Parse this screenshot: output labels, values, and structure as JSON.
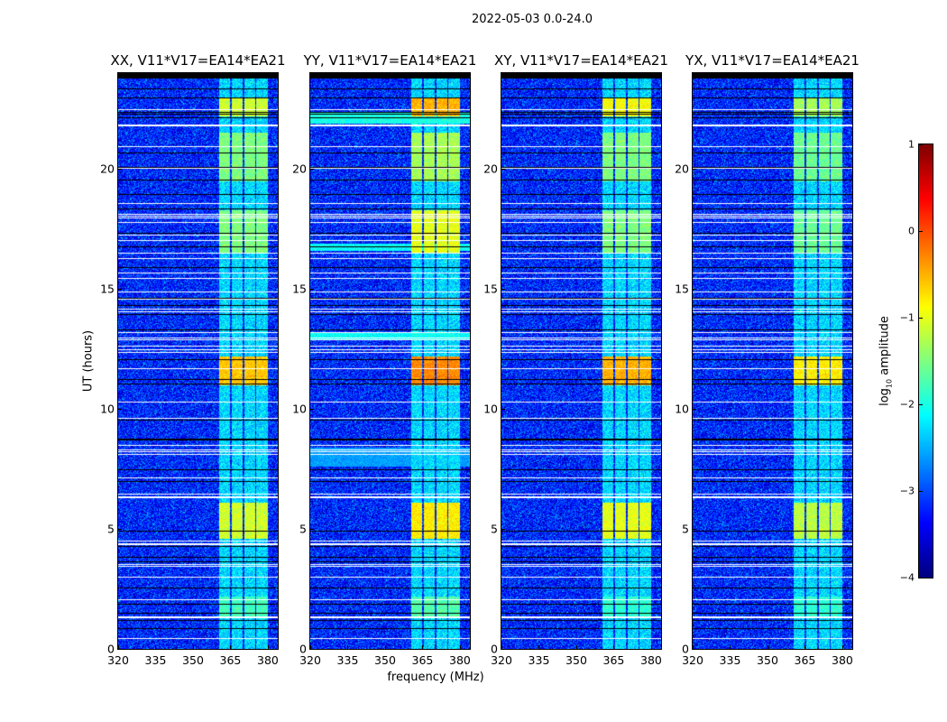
{
  "chart_data": {
    "type": "heatmap",
    "title": "2022-05-03 0.0-24.0",
    "xlabel": "frequency (MHz)",
    "ylabel": "UT (hours)",
    "xlim": [
      320,
      384
    ],
    "ylim": [
      0,
      24
    ],
    "xticks": [
      320,
      335,
      350,
      365,
      380
    ],
    "yticks": [
      0,
      5,
      10,
      15,
      20
    ],
    "colormap": "jet",
    "colorbar": {
      "label": "log10 amplitude",
      "label_base": "log",
      "label_sub": "10",
      "label_rest": " amplitude",
      "range": [
        -4,
        1
      ],
      "ticks": [
        "1",
        "0",
        "−1",
        "−2",
        "−3",
        "−4"
      ],
      "tick_values": [
        1,
        0,
        -1,
        -2,
        -3,
        -4
      ]
    },
    "background_level": -3.2,
    "rfi_channels_mhz": [
      [
        360.5,
        365
      ],
      [
        365.5,
        370
      ],
      [
        370.5,
        375
      ],
      [
        375.5,
        380
      ]
    ],
    "channel_baseline_level": -2.3,
    "flagged_hours_white": [
      22.5,
      21.85,
      21.8,
      20.94,
      20.04,
      18.57,
      18.12,
      18.06,
      17.97,
      17.78,
      17.26,
      17.03,
      16.5,
      16.28,
      15.68,
      15.45,
      14.89,
      14.59,
      14.17,
      14.06,
      13.2,
      12.96,
      12.9,
      12.63,
      12.48,
      12.37,
      11.69,
      10.3,
      9.62,
      8.5,
      8.31,
      8.23,
      8.12,
      7.14,
      6.47,
      6.37,
      6.32,
      4.51,
      4.42,
      4.37,
      3.53,
      3.46,
      3.0,
      2.07,
      1.37,
      1.32,
      0.45
    ],
    "flagged_hours_black": [
      23.35,
      23.0,
      22.4,
      22.3,
      22.14,
      20.68,
      20.07,
      19.55,
      18.95,
      18.35,
      17.33,
      16.77,
      15.9,
      14.62,
      14.32,
      13.95,
      13.3,
      12.07,
      11.24,
      11.05,
      9.55,
      8.78,
      8.74,
      7.48,
      6.99,
      4.92,
      4.29,
      3.83,
      3.65,
      2.56,
      1.88,
      1.5,
      1.2,
      0.86
    ],
    "panels": [
      {
        "title": "XX, V11*V17=EA14*EA21",
        "bursts": [
          {
            "hours": [
              22.2,
              23.0
            ],
            "level": -1.1
          },
          {
            "hours": [
              19.5,
              21.5
            ],
            "level": -1.5
          },
          {
            "hours": [
              16.5,
              18.3
            ],
            "level": -1.5
          },
          {
            "hours": [
              11.0,
              12.2
            ],
            "level": -0.6
          },
          {
            "hours": [
              4.6,
              6.1
            ],
            "level": -1.1
          },
          {
            "hours": [
              1.3,
              2.2
            ],
            "level": -1.8
          }
        ],
        "broadband": []
      },
      {
        "title": "YY, V11*V17=EA14*EA21",
        "bursts": [
          {
            "hours": [
              22.2,
              23.0
            ],
            "level": -0.5
          },
          {
            "hours": [
              19.5,
              21.5
            ],
            "level": -1.3
          },
          {
            "hours": [
              16.5,
              18.3
            ],
            "level": -1.0
          },
          {
            "hours": [
              11.0,
              12.2
            ],
            "level": -0.3
          },
          {
            "hours": [
              4.6,
              6.1
            ],
            "level": -0.8
          },
          {
            "hours": [
              1.3,
              2.2
            ],
            "level": -1.7
          }
        ],
        "broadband": [
          {
            "hours": [
              21.9,
              22.4
            ],
            "level": -2.0
          },
          {
            "hours": [
              16.6,
              16.9
            ],
            "level": -2.1
          },
          {
            "hours": [
              12.9,
              13.2
            ],
            "level": -2.1
          },
          {
            "hours": [
              7.6,
              8.4
            ],
            "level": -2.6
          }
        ]
      },
      {
        "title": "XY, V11*V17=EA14*EA21",
        "bursts": [
          {
            "hours": [
              22.2,
              23.0
            ],
            "level": -0.9
          },
          {
            "hours": [
              19.5,
              21.5
            ],
            "level": -1.5
          },
          {
            "hours": [
              16.5,
              18.3
            ],
            "level": -1.5
          },
          {
            "hours": [
              11.0,
              12.2
            ],
            "level": -0.5
          },
          {
            "hours": [
              4.6,
              6.1
            ],
            "level": -1.0
          },
          {
            "hours": [
              1.3,
              2.2
            ],
            "level": -1.9
          }
        ],
        "broadband": []
      },
      {
        "title": "YX, V11*V17=EA14*EA21",
        "bursts": [
          {
            "hours": [
              22.2,
              23.0
            ],
            "level": -1.3
          },
          {
            "hours": [
              19.5,
              21.5
            ],
            "level": -1.6
          },
          {
            "hours": [
              16.5,
              18.3
            ],
            "level": -1.6
          },
          {
            "hours": [
              11.0,
              12.2
            ],
            "level": -0.8
          },
          {
            "hours": [
              4.6,
              6.1
            ],
            "level": -1.2
          },
          {
            "hours": [
              1.3,
              2.2
            ],
            "level": -1.9
          }
        ],
        "broadband": []
      }
    ]
  }
}
